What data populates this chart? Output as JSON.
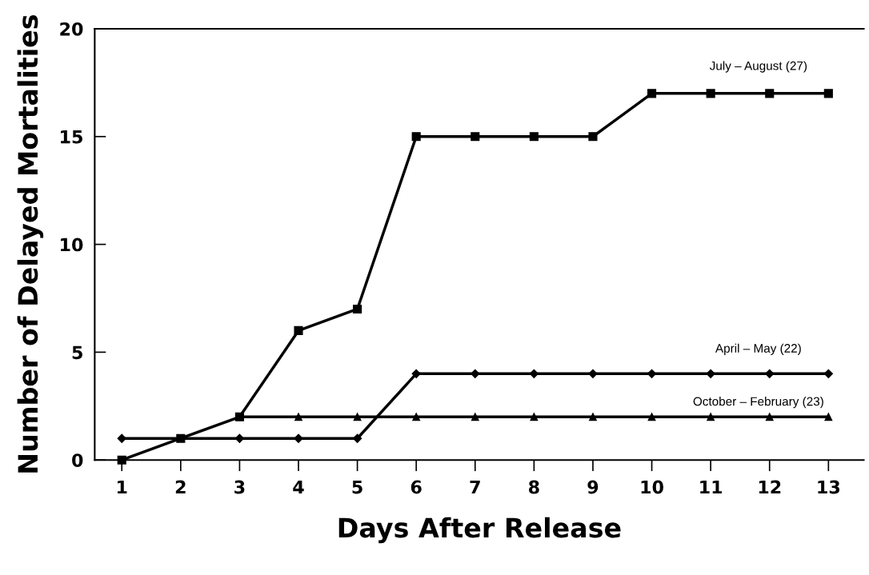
{
  "chart_data": {
    "type": "line",
    "xlabel": "Days After Release",
    "ylabel": "Number of Delayed Mortalities",
    "x": [
      1,
      2,
      3,
      4,
      5,
      6,
      7,
      8,
      9,
      10,
      11,
      12,
      13
    ],
    "xlim": [
      0.54,
      13.6
    ],
    "xticks": [
      1,
      2,
      3,
      4,
      5,
      6,
      7,
      8,
      9,
      10,
      11,
      12,
      13
    ],
    "ylim": [
      0,
      20
    ],
    "yticks": [
      0,
      5,
      10,
      15,
      20
    ],
    "grid": false,
    "legend": false,
    "line_style": "solid",
    "series": [
      {
        "name": "July – August (27)",
        "color": "#000000",
        "marker": "square",
        "values": [
          0,
          1,
          2,
          6,
          7,
          15,
          15,
          15,
          15,
          17,
          17,
          17,
          17
        ]
      },
      {
        "name": "April – May (22)",
        "color": "#000000",
        "marker": "diamond",
        "values": [
          1,
          1,
          1,
          1,
          1,
          4,
          4,
          4,
          4,
          4,
          4,
          4,
          4
        ]
      },
      {
        "name": "October – February (23)",
        "color": "#000000",
        "marker": "triangle",
        "values": [
          null,
          null,
          2,
          2,
          2,
          2,
          2,
          2,
          2,
          2,
          2,
          2,
          2
        ]
      }
    ]
  }
}
